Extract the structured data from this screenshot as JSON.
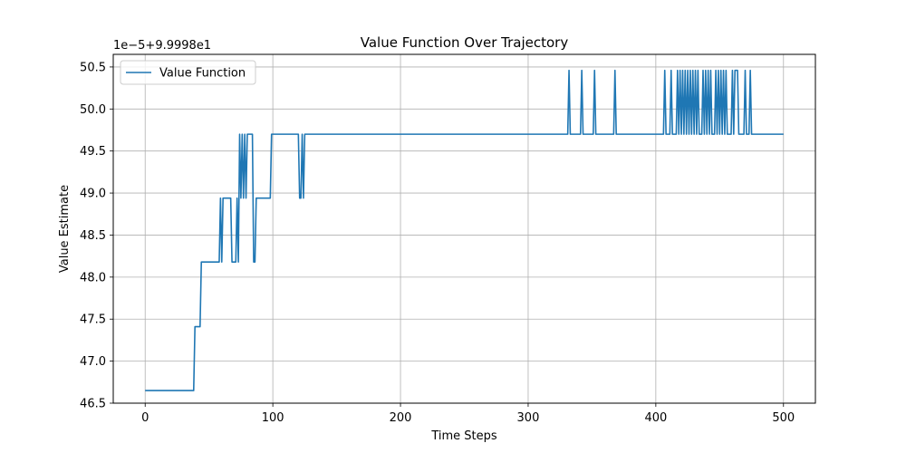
{
  "chart_data": {
    "type": "line",
    "title": "Value Function Over Trajectory",
    "xlabel": "Time Steps",
    "ylabel": "Value Estimate",
    "offset_text": "1e−5+9.9998e1",
    "xlim": [
      -25,
      525
    ],
    "ylim": [
      46.5,
      50.65
    ],
    "xticks": [
      0,
      100,
      200,
      300,
      400,
      500
    ],
    "yticks": [
      46.5,
      47.0,
      47.5,
      48.0,
      48.5,
      49.0,
      49.5,
      50.0,
      50.5
    ],
    "ytick_labels": [
      "46.5",
      "47.0",
      "47.5",
      "48.0",
      "48.5",
      "49.0",
      "49.5",
      "50.0",
      "50.5"
    ],
    "grid": true,
    "legend_position": "top-left",
    "series": [
      {
        "name": "Value Function",
        "color": "#1f77b4",
        "points": [
          [
            0,
            46.65
          ],
          [
            38,
            46.65
          ],
          [
            39,
            47.41
          ],
          [
            43,
            47.41
          ],
          [
            44,
            48.18
          ],
          [
            58,
            48.18
          ],
          [
            59,
            48.94
          ],
          [
            60,
            48.18
          ],
          [
            61,
            48.94
          ],
          [
            67,
            48.94
          ],
          [
            68,
            48.18
          ],
          [
            71,
            48.18
          ],
          [
            72,
            48.94
          ],
          [
            73,
            48.18
          ],
          [
            74,
            49.7
          ],
          [
            75,
            48.94
          ],
          [
            76,
            49.7
          ],
          [
            77,
            48.94
          ],
          [
            78,
            49.7
          ],
          [
            79,
            48.94
          ],
          [
            80,
            49.7
          ],
          [
            84,
            49.7
          ],
          [
            85,
            48.18
          ],
          [
            86,
            48.18
          ],
          [
            87,
            48.94
          ],
          [
            98,
            48.94
          ],
          [
            99,
            49.7
          ],
          [
            120,
            49.7
          ],
          [
            121,
            48.94
          ],
          [
            122,
            48.94
          ],
          [
            123,
            49.7
          ],
          [
            124,
            48.94
          ],
          [
            125,
            49.7
          ],
          [
            331,
            49.7
          ],
          [
            332,
            50.46
          ],
          [
            333,
            49.7
          ],
          [
            341,
            49.7
          ],
          [
            342,
            50.46
          ],
          [
            343,
            49.7
          ],
          [
            351,
            49.7
          ],
          [
            352,
            50.46
          ],
          [
            353,
            49.7
          ],
          [
            367,
            49.7
          ],
          [
            368,
            50.46
          ],
          [
            369,
            49.7
          ],
          [
            406,
            49.7
          ],
          [
            407,
            50.46
          ],
          [
            408,
            49.7
          ],
          [
            411,
            49.7
          ],
          [
            412,
            50.46
          ],
          [
            413,
            49.7
          ],
          [
            416,
            49.7
          ],
          [
            417,
            50.46
          ],
          [
            418,
            49.7
          ],
          [
            419,
            50.46
          ],
          [
            420,
            49.7
          ],
          [
            421,
            50.46
          ],
          [
            422,
            49.7
          ],
          [
            423,
            50.46
          ],
          [
            424,
            49.7
          ],
          [
            425,
            50.46
          ],
          [
            426,
            49.7
          ],
          [
            427,
            50.46
          ],
          [
            428,
            49.7
          ],
          [
            429,
            50.46
          ],
          [
            430,
            49.7
          ],
          [
            431,
            50.46
          ],
          [
            432,
            49.7
          ],
          [
            433,
            50.46
          ],
          [
            434,
            49.7
          ],
          [
            436,
            49.7
          ],
          [
            437,
            50.46
          ],
          [
            438,
            49.7
          ],
          [
            439,
            50.46
          ],
          [
            440,
            49.7
          ],
          [
            441,
            50.46
          ],
          [
            442,
            49.7
          ],
          [
            443,
            50.46
          ],
          [
            444,
            49.7
          ],
          [
            446,
            49.7
          ],
          [
            447,
            50.46
          ],
          [
            448,
            49.7
          ],
          [
            449,
            50.46
          ],
          [
            450,
            49.7
          ],
          [
            451,
            50.46
          ],
          [
            452,
            49.7
          ],
          [
            453,
            50.46
          ],
          [
            454,
            49.7
          ],
          [
            455,
            50.46
          ],
          [
            456,
            49.7
          ],
          [
            459,
            49.7
          ],
          [
            460,
            50.46
          ],
          [
            461,
            49.7
          ],
          [
            462,
            50.46
          ],
          [
            464,
            50.46
          ],
          [
            465,
            49.7
          ],
          [
            469,
            49.7
          ],
          [
            470,
            50.46
          ],
          [
            471,
            49.7
          ],
          [
            473,
            49.7
          ],
          [
            474,
            50.46
          ],
          [
            475,
            49.7
          ],
          [
            500,
            49.7
          ]
        ]
      }
    ]
  }
}
